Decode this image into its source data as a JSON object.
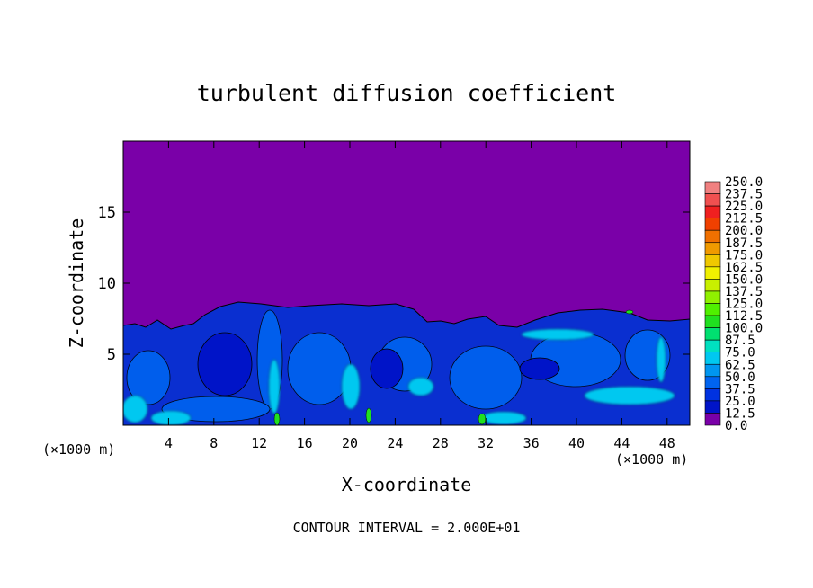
{
  "chart_data": {
    "type": "heatmap",
    "title": "turbulent diffusion coefficient",
    "xlabel": "X-coordinate",
    "ylabel": "Z-coordinate",
    "x_units_left": "(×1000 m)",
    "x_units_right": "(×1000 m)",
    "xlim": [
      0,
      50
    ],
    "ylim": [
      0,
      20
    ],
    "x_ticks": [
      4,
      8,
      12,
      16,
      20,
      24,
      28,
      32,
      36,
      40,
      44,
      48
    ],
    "y_ticks": [
      5,
      10,
      15
    ],
    "footer": "CONTOUR INTERVAL = 2.000E+01",
    "colorbar": {
      "levels": [
        "250.0",
        "237.5",
        "225.0",
        "212.5",
        "200.0",
        "187.5",
        "175.0",
        "162.5",
        "150.0",
        "137.5",
        "125.0",
        "112.5",
        "100.0",
        "87.5",
        "75.0",
        "62.5",
        "50.0",
        "37.5",
        "25.0",
        "12.5",
        "0.0"
      ],
      "colors": [
        "#f08080",
        "#f05050",
        "#f02020",
        "#f04000",
        "#f07000",
        "#f09a00",
        "#f0c800",
        "#f0f000",
        "#c8f000",
        "#90f000",
        "#50f000",
        "#20e020",
        "#00e070",
        "#00e0c0",
        "#00c8f0",
        "#0096f0",
        "#0064f0",
        "#0032e0",
        "#0014c8",
        "#7a00a8"
      ]
    },
    "field": {
      "background_level": "0.0",
      "background_color": "#7a00a8",
      "turbulent_layer_top_approx": 7.5,
      "dominant_range": "25.0–75.0"
    }
  }
}
